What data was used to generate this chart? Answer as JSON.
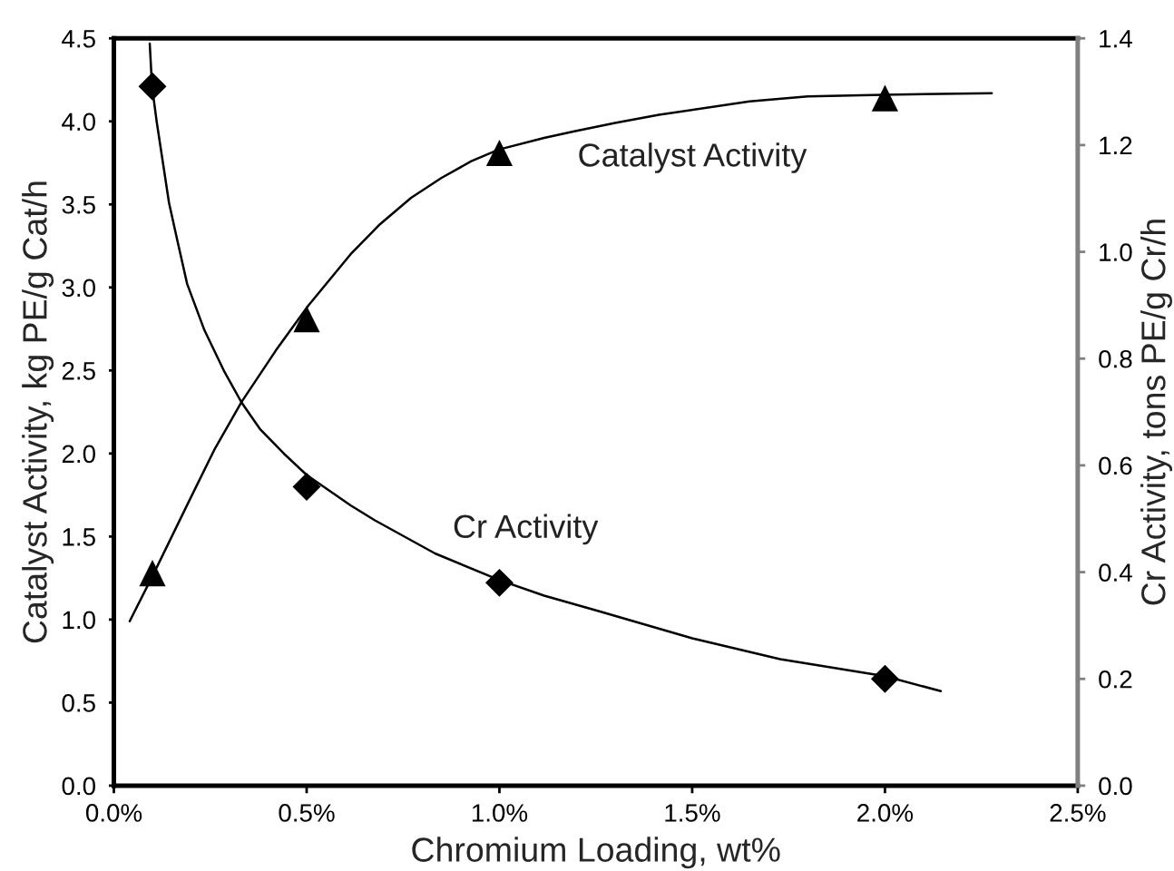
{
  "chart_data": {
    "type": "scatter",
    "xlabel": "Chromium Loading, wt%",
    "ylabel": "Catalyst Activity, kg PE/g Cat/h",
    "y2label": "Cr Activity, tons PE/g Cr/h",
    "xlim": [
      0,
      2.5
    ],
    "xticks": [
      {
        "value": 0,
        "label": "0.0%"
      },
      {
        "value": 0.5,
        "label": "0.5%"
      },
      {
        "value": 1,
        "label": "1.0%"
      },
      {
        "value": 1.5,
        "label": "1.5%"
      },
      {
        "value": 2,
        "label": "2.0%"
      },
      {
        "value": 2.5,
        "label": "2.5%"
      }
    ],
    "ylim": [
      0,
      4.5
    ],
    "yticks": [
      {
        "value": 0,
        "label": "0.0"
      },
      {
        "value": 0.5,
        "label": "0.5"
      },
      {
        "value": 1,
        "label": "1.0"
      },
      {
        "value": 1.5,
        "label": "1.5"
      },
      {
        "value": 2,
        "label": "2.0"
      },
      {
        "value": 2.5,
        "label": "2.5"
      },
      {
        "value": 3,
        "label": "3.0"
      },
      {
        "value": 3.5,
        "label": "3.5"
      },
      {
        "value": 4,
        "label": "4.0"
      },
      {
        "value": 4.5,
        "label": "4.5"
      }
    ],
    "y2lim": [
      0,
      1.4
    ],
    "y2ticks": [
      {
        "value": 0,
        "label": "0.0"
      },
      {
        "value": 0.2,
        "label": "0.2"
      },
      {
        "value": 0.4,
        "label": "0.4"
      },
      {
        "value": 0.6,
        "label": "0.6"
      },
      {
        "value": 0.8,
        "label": "0.8"
      },
      {
        "value": 1,
        "label": "1.0"
      },
      {
        "value": 1.2,
        "label": "1.2"
      },
      {
        "value": 1.4,
        "label": "1.4"
      }
    ],
    "series": [
      {
        "type": "line",
        "color": "#000000",
        "line_style": "solid",
        "x": [
          0.041,
          0.104,
          0.19,
          0.26,
          0.331,
          0.42,
          0.504,
          0.614,
          0.69,
          0.771,
          0.85,
          0.927,
          0.998,
          1.116,
          1.194,
          1.3,
          1.414,
          1.649,
          1.8,
          1.995,
          2.277
        ],
        "values": [
          0.99,
          1.28,
          1.69,
          2.02,
          2.31,
          2.62,
          2.89,
          3.2,
          3.38,
          3.54,
          3.66,
          3.76,
          3.83,
          3.9,
          3.94,
          3.99,
          4.04,
          4.12,
          4.15,
          4.16,
          4.17
        ]
      },
      {
        "type": "line",
        "axis": "y2",
        "color": "#000000",
        "line_style": "solid",
        "x": [
          0.093,
          0.099,
          0.111,
          0.143,
          0.165,
          0.19,
          0.235,
          0.287,
          0.331,
          0.38,
          0.441,
          0.5,
          0.614,
          0.677,
          0.833,
          1.0,
          1.116,
          1.257,
          1.5,
          1.728,
          2.0,
          2.145
        ],
        "values": [
          1.39,
          1.31,
          1.244,
          1.092,
          1.02,
          0.94,
          0.853,
          0.775,
          0.718,
          0.667,
          0.622,
          0.582,
          0.525,
          0.497,
          0.435,
          0.385,
          0.356,
          0.327,
          0.276,
          0.237,
          0.205,
          0.177
        ]
      },
      {
        "marker": "triangle",
        "color": "#000000",
        "x": [
          0.1,
          0.5,
          1.0,
          2.0
        ],
        "values": [
          1.28,
          2.81,
          3.81,
          4.14
        ]
      },
      {
        "marker": "diamond",
        "axis": "y2",
        "color": "#000000",
        "x": [
          0.1,
          0.5,
          1.0,
          2.0
        ],
        "values": [
          1.31,
          0.56,
          0.38,
          0.2
        ]
      }
    ],
    "annotations": [
      "Catalyst Activity",
      "Cr Activity"
    ]
  }
}
